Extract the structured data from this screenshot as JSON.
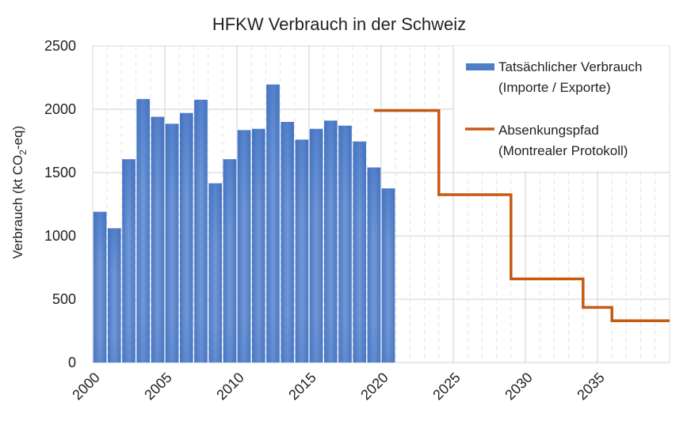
{
  "chart_data": {
    "type": "bar",
    "title": "HFKW Verbrauch in der Schweiz",
    "xlabel": "",
    "ylabel": "Verbrauch (kt CO2-eq)",
    "ylabel_parts": {
      "main": "Verbrauch (kt CO",
      "sub": "2",
      "end": "-eq)"
    },
    "ylim": [
      0,
      2500
    ],
    "yticks": [
      0,
      500,
      1000,
      1500,
      2000,
      2500
    ],
    "xlim": [
      2000,
      2039
    ],
    "xticks": [
      2000,
      2005,
      2010,
      2015,
      2020,
      2025,
      2030,
      2035
    ],
    "grid": {
      "horizontal": true,
      "vertical_major": true,
      "vertical_minor_dashed": true
    },
    "legend_position": "upper right",
    "series": [
      {
        "name": "Tatsächlicher Verbrauch (Importe / Exporte)",
        "legend_lines": [
          "Tatsächlicher Verbrauch",
          "(Importe / Exporte)"
        ],
        "type": "bar",
        "color": "#4f7ec9",
        "x": [
          2000,
          2001,
          2002,
          2003,
          2004,
          2005,
          2006,
          2007,
          2008,
          2009,
          2010,
          2011,
          2012,
          2013,
          2014,
          2015,
          2016,
          2017,
          2018,
          2019,
          2020
        ],
        "values": [
          1190,
          1060,
          1605,
          2080,
          1940,
          1885,
          1970,
          2075,
          1415,
          1605,
          1835,
          1845,
          2195,
          1900,
          1760,
          1845,
          1910,
          1870,
          1745,
          1540,
          1375
        ]
      },
      {
        "name": "Absenkungspfad (Montrealer Protokoll)",
        "legend_lines": [
          "Absenkungspfad",
          "(Montrealer Protokoll)"
        ],
        "type": "step-line",
        "color": "#c55a11",
        "steps": [
          {
            "from": 2019,
            "to": 2024,
            "value": 1990
          },
          {
            "from": 2024,
            "to": 2029,
            "value": 1325
          },
          {
            "from": 2029,
            "to": 2034,
            "value": 660
          },
          {
            "from": 2034,
            "to": 2036,
            "value": 435
          },
          {
            "from": 2036,
            "to": 2040,
            "value": 330
          }
        ]
      }
    ]
  }
}
